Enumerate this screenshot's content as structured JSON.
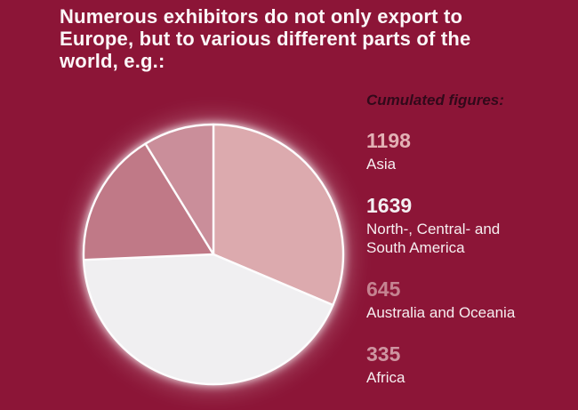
{
  "background_color": "#8c1537",
  "title": {
    "text": "Numerous exhibitors do not only export to Europe, but to various different parts of the world, e.g.:",
    "line1": "Numerous exhibitors do not only export to",
    "line2": "Europe, but to various different parts of the",
    "line3": "world, e.g.:",
    "color": "#fcf7f8"
  },
  "legend": {
    "heading": "Cumulated figures:",
    "heading_color": "#31091a",
    "label_color": "#f6eef0",
    "items": [
      {
        "value": "1198",
        "label": "Asia",
        "value_color": "#e3b1b5"
      },
      {
        "value": "1639",
        "label": "North-, Central- and South America",
        "value_color": "#f3eff1"
      },
      {
        "value": "645",
        "label": "Australia and Oceania",
        "value_color": "#c58391"
      },
      {
        "value": "335",
        "label": "Africa",
        "value_color": "#ce95a1"
      }
    ]
  },
  "chart_data": {
    "type": "pie",
    "title": "Numerous exhibitors do not only export to Europe, but to various different parts of the world, e.g.:",
    "subtitle": "Cumulated figures:",
    "categories": [
      "Asia",
      "North-, Central- and South America",
      "Australia and Oceania",
      "Africa"
    ],
    "values": [
      1198,
      1639,
      645,
      335
    ],
    "total": 3817,
    "colors": [
      "#dcaaae",
      "#f0eff1",
      "#c07987",
      "#ca8e9a"
    ],
    "slice_stroke_color": "#fdfcfd",
    "radius_px": 146,
    "start_angle_deg": 0,
    "direction": "clockwise",
    "legend_position": "right"
  }
}
